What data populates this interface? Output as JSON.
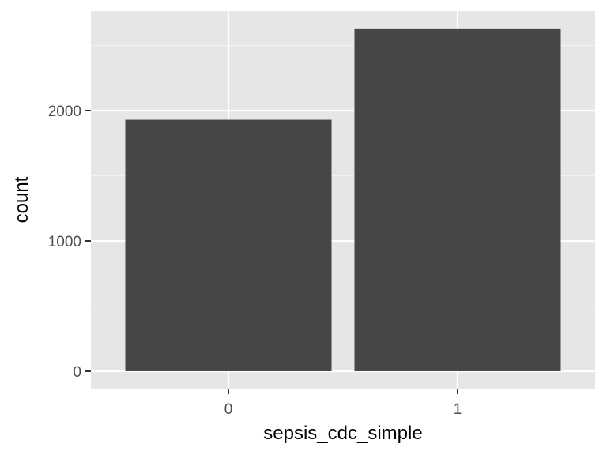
{
  "chart_data": {
    "type": "bar",
    "categories": [
      "0",
      "1"
    ],
    "values": [
      1930,
      2625
    ],
    "xlabel": "sepsis_cdc_simple",
    "ylabel": "count",
    "ylim": [
      0,
      2750
    ],
    "yticks": [
      0,
      1000,
      2000
    ],
    "ytick_labels": [
      "0",
      "1000",
      "2000"
    ],
    "grid": true,
    "legend": "none",
    "colors": {
      "bar": "#464646",
      "panel": "#e6e6e6",
      "grid_major": "#ffffff",
      "grid_minor": "#f2f2f2",
      "tick": "#333333"
    }
  }
}
